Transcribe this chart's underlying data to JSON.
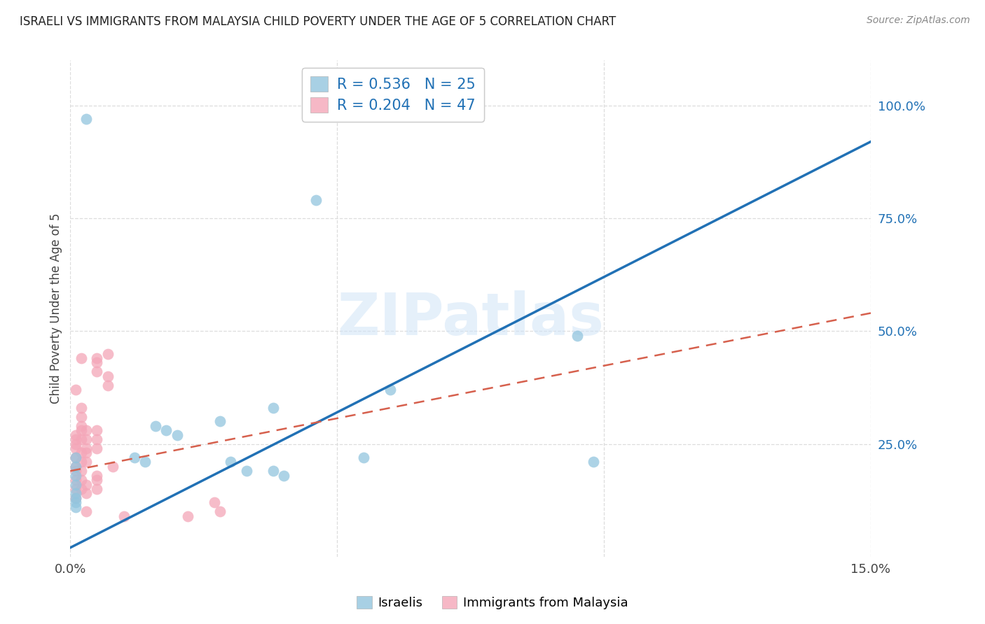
{
  "title": "ISRAELI VS IMMIGRANTS FROM MALAYSIA CHILD POVERTY UNDER THE AGE OF 5 CORRELATION CHART",
  "source": "Source: ZipAtlas.com",
  "ylabel": "Child Poverty Under the Age of 5",
  "xlim": [
    0.0,
    0.15
  ],
  "ylim": [
    0.0,
    1.1
  ],
  "xtick_vals": [
    0.0,
    0.05,
    0.1,
    0.15
  ],
  "xtick_labels": [
    "0.0%",
    "",
    "",
    "15.0%"
  ],
  "ytick_positions": [
    0.25,
    0.5,
    0.75,
    1.0
  ],
  "ytick_labels": [
    "25.0%",
    "50.0%",
    "75.0%",
    "100.0%"
  ],
  "watermark": "ZIPatlas",
  "israeli_color": "#92c5de",
  "malaysia_color": "#f4a6b8",
  "israeli_R": 0.536,
  "israeli_N": 25,
  "malaysia_R": 0.204,
  "malaysia_N": 47,
  "israeli_line_color": "#2171b5",
  "malaysia_line_color": "#d6604d",
  "israeli_line_x": [
    0.0,
    0.15
  ],
  "israeli_line_y": [
    0.02,
    0.92
  ],
  "malaysia_line_x": [
    0.0,
    0.15
  ],
  "malaysia_line_y": [
    0.19,
    0.54
  ],
  "grid_color": "#dddddd",
  "background_color": "#ffffff",
  "israeli_points": [
    [
      0.003,
      0.97
    ],
    [
      0.046,
      0.79
    ],
    [
      0.001,
      0.22
    ],
    [
      0.001,
      0.2
    ],
    [
      0.001,
      0.18
    ],
    [
      0.001,
      0.16
    ],
    [
      0.001,
      0.14
    ],
    [
      0.001,
      0.13
    ],
    [
      0.001,
      0.12
    ],
    [
      0.001,
      0.11
    ],
    [
      0.012,
      0.22
    ],
    [
      0.014,
      0.21
    ],
    [
      0.016,
      0.29
    ],
    [
      0.018,
      0.28
    ],
    [
      0.02,
      0.27
    ],
    [
      0.028,
      0.3
    ],
    [
      0.03,
      0.21
    ],
    [
      0.033,
      0.19
    ],
    [
      0.038,
      0.33
    ],
    [
      0.038,
      0.19
    ],
    [
      0.04,
      0.18
    ],
    [
      0.055,
      0.22
    ],
    [
      0.06,
      0.37
    ],
    [
      0.095,
      0.49
    ],
    [
      0.098,
      0.21
    ]
  ],
  "malaysia_points": [
    [
      0.001,
      0.37
    ],
    [
      0.001,
      0.27
    ],
    [
      0.001,
      0.26
    ],
    [
      0.001,
      0.25
    ],
    [
      0.001,
      0.24
    ],
    [
      0.001,
      0.22
    ],
    [
      0.001,
      0.2
    ],
    [
      0.001,
      0.19
    ],
    [
      0.001,
      0.17
    ],
    [
      0.001,
      0.15
    ],
    [
      0.001,
      0.13
    ],
    [
      0.002,
      0.44
    ],
    [
      0.002,
      0.33
    ],
    [
      0.002,
      0.31
    ],
    [
      0.002,
      0.29
    ],
    [
      0.002,
      0.28
    ],
    [
      0.002,
      0.26
    ],
    [
      0.002,
      0.23
    ],
    [
      0.002,
      0.21
    ],
    [
      0.002,
      0.19
    ],
    [
      0.002,
      0.17
    ],
    [
      0.002,
      0.15
    ],
    [
      0.003,
      0.28
    ],
    [
      0.003,
      0.26
    ],
    [
      0.003,
      0.24
    ],
    [
      0.003,
      0.23
    ],
    [
      0.003,
      0.21
    ],
    [
      0.003,
      0.16
    ],
    [
      0.003,
      0.14
    ],
    [
      0.003,
      0.1
    ],
    [
      0.005,
      0.44
    ],
    [
      0.005,
      0.43
    ],
    [
      0.005,
      0.41
    ],
    [
      0.005,
      0.28
    ],
    [
      0.005,
      0.26
    ],
    [
      0.005,
      0.24
    ],
    [
      0.005,
      0.18
    ],
    [
      0.005,
      0.17
    ],
    [
      0.005,
      0.15
    ],
    [
      0.007,
      0.45
    ],
    [
      0.007,
      0.4
    ],
    [
      0.007,
      0.38
    ],
    [
      0.008,
      0.2
    ],
    [
      0.01,
      0.09
    ],
    [
      0.022,
      0.09
    ],
    [
      0.027,
      0.12
    ],
    [
      0.028,
      0.1
    ]
  ]
}
